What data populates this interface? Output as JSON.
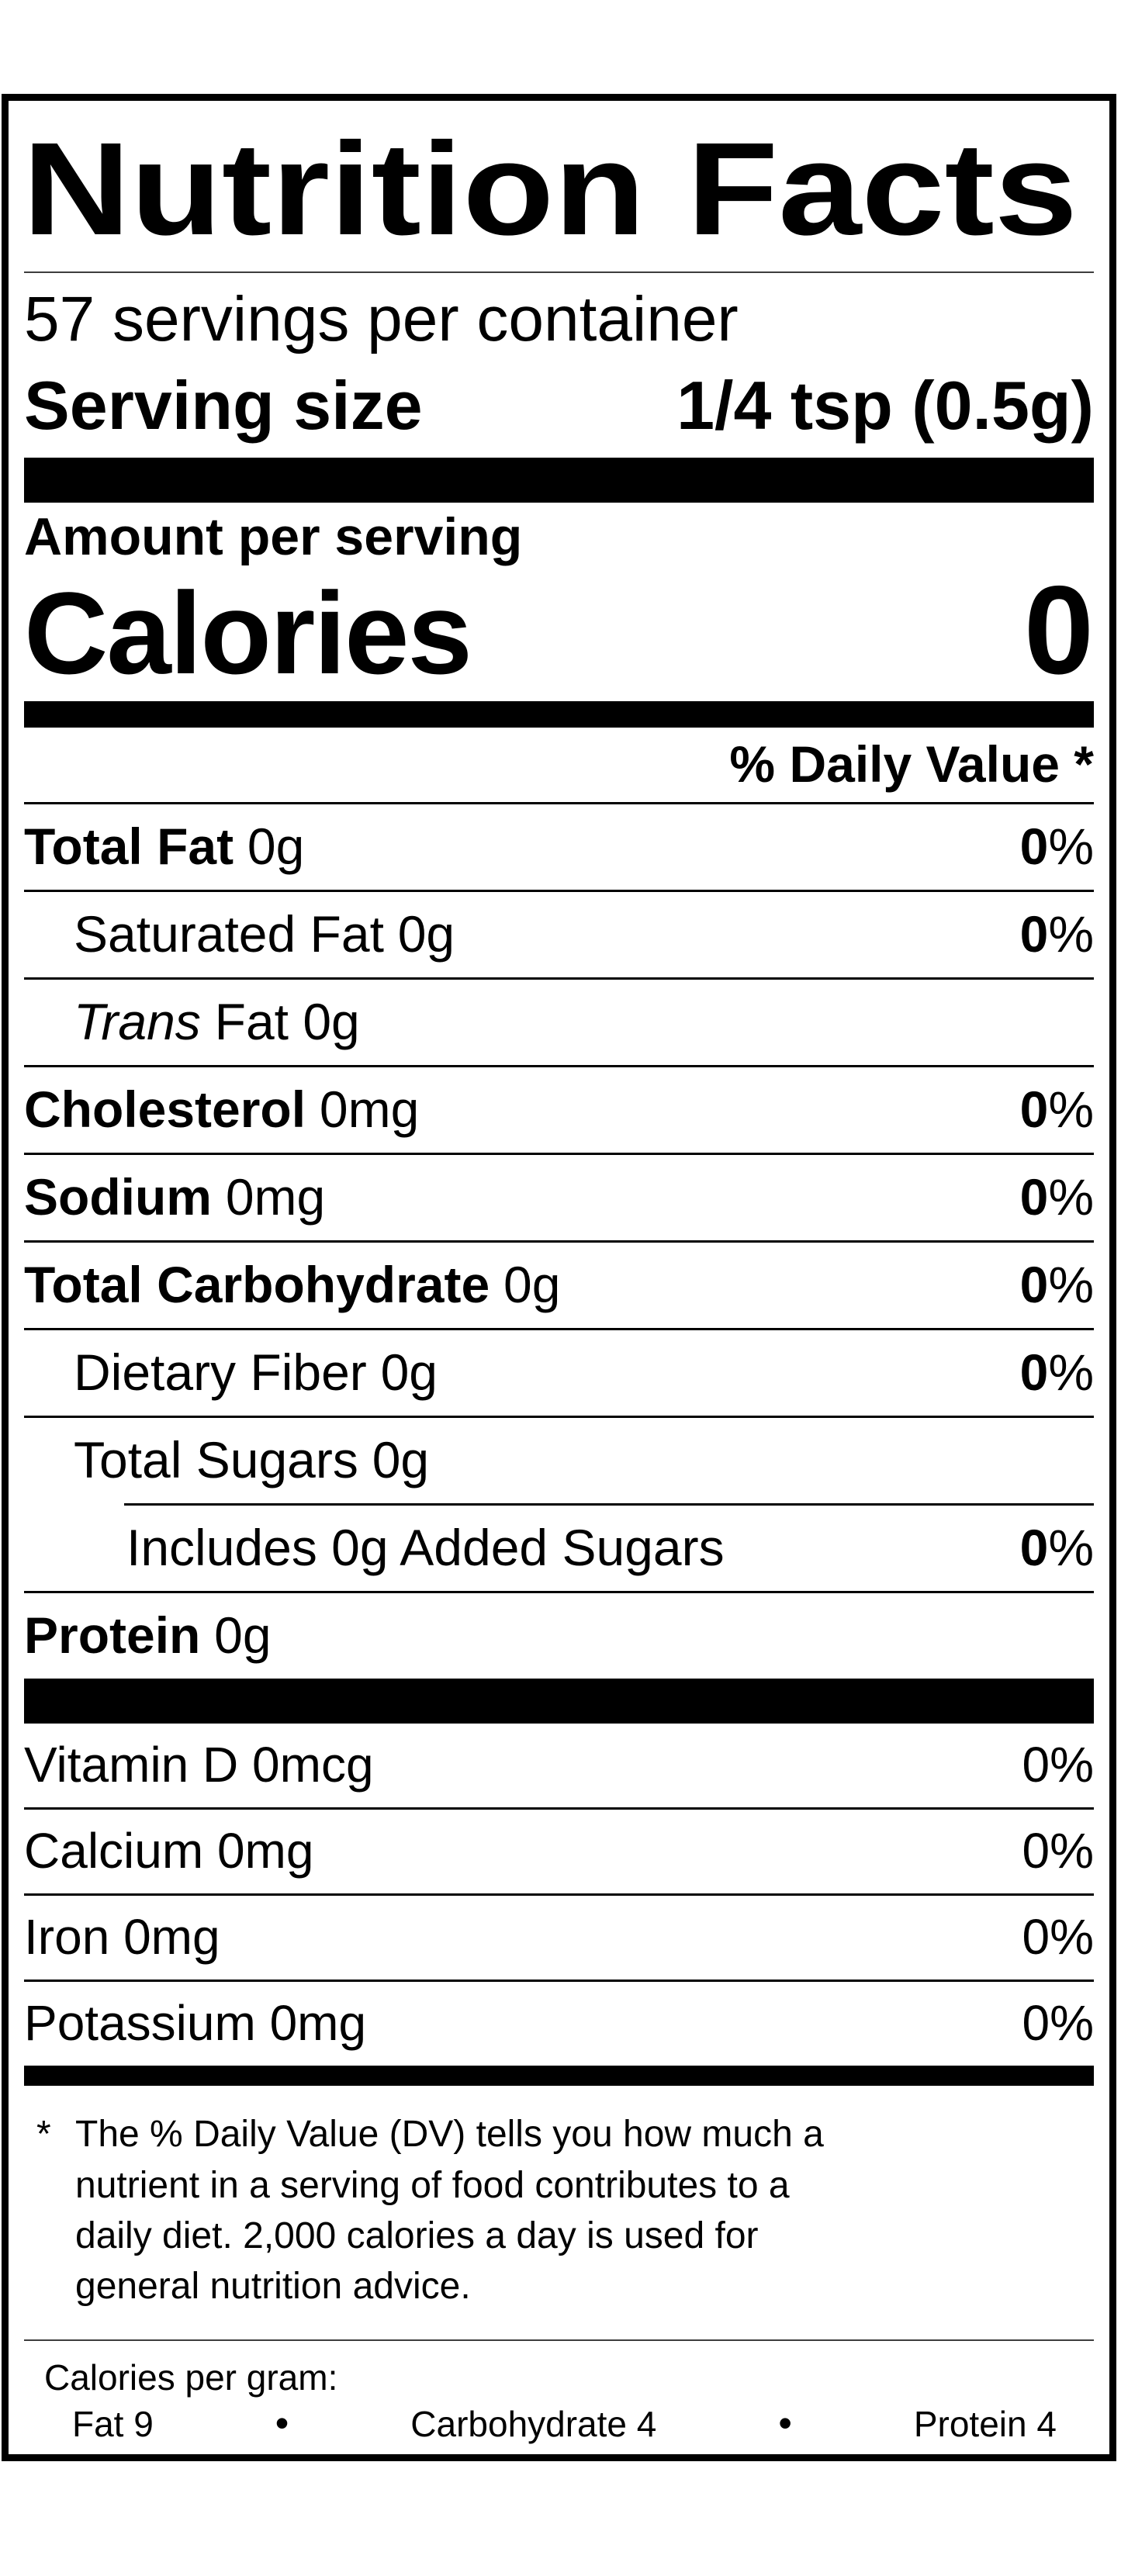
{
  "colors": {
    "text": "#000000",
    "background": "#ffffff"
  },
  "label": {
    "title": "Nutrition Facts",
    "servings_line": "57 servings per container",
    "serving_size": {
      "label": "Serving size",
      "value": "1/4 tsp (0.5g)"
    },
    "amount_per_serving": "Amount per serving",
    "calories": {
      "label": "Calories",
      "value": "0"
    },
    "daily_value_header": "% Daily Value *",
    "nutrients": [
      {
        "name": "Total Fat",
        "amount": "0g",
        "dv": "0",
        "dv_unit": "%"
      },
      {
        "name": "Saturated Fat",
        "amount": "0g",
        "dv": "0",
        "dv_unit": "%"
      },
      {
        "name": "Trans",
        "amount": "Fat 0g",
        "dv": "",
        "dv_unit": ""
      },
      {
        "name": "Cholesterol",
        "amount": "0mg",
        "dv": "0",
        "dv_unit": "%"
      },
      {
        "name": "Sodium",
        "amount": "0mg",
        "dv": "0",
        "dv_unit": "%"
      },
      {
        "name": "Total Carbohydrate",
        "amount": "0g",
        "dv": "0",
        "dv_unit": "%"
      },
      {
        "name": "Dietary Fiber",
        "amount": "0g",
        "dv": "0",
        "dv_unit": "%"
      },
      {
        "name": "Total Sugars",
        "amount": "0g",
        "dv": "",
        "dv_unit": ""
      },
      {
        "name": "Includes 0g Added Sugars",
        "amount": "",
        "dv": "0",
        "dv_unit": "%"
      },
      {
        "name": "Protein",
        "amount": "0g",
        "dv": "",
        "dv_unit": ""
      }
    ],
    "micronutrients": [
      {
        "name": "Vitamin D 0mcg",
        "dv": "0%"
      },
      {
        "name": "Calcium 0mg",
        "dv": "0%"
      },
      {
        "name": "Iron 0mg",
        "dv": "0%"
      },
      {
        "name": "Potassium 0mg",
        "dv": "0%"
      }
    ],
    "footnote": {
      "marker": "*",
      "text": "The % Daily Value (DV) tells you how much a nutrient in a serving of food contributes to a daily diet. 2,000 calories a day is used for general nutrition advice."
    },
    "calories_per_gram": {
      "heading": "Calories per gram:",
      "separator": "•",
      "items": [
        "Fat 9",
        "Carbohydrate 4",
        "Protein 4"
      ]
    }
  }
}
